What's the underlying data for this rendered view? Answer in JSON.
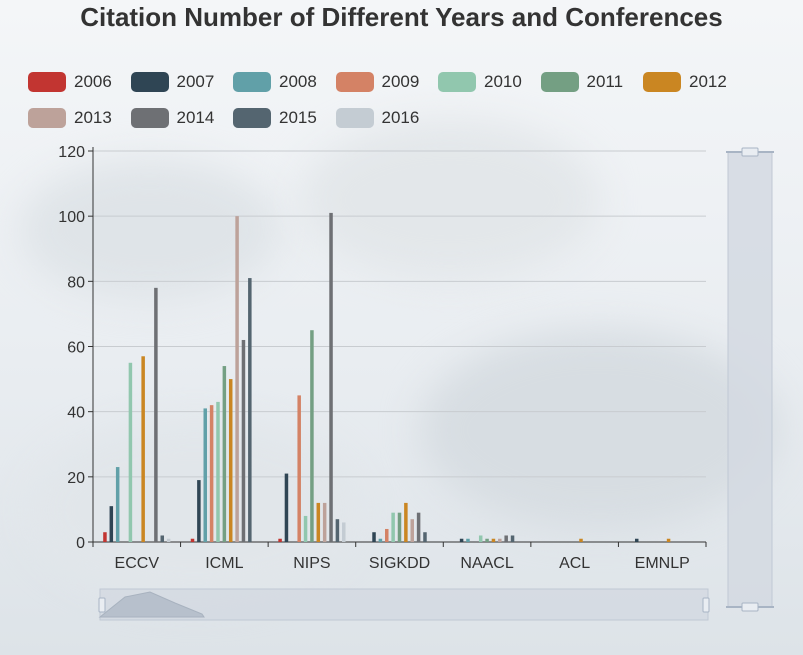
{
  "chart_data": {
    "type": "bar",
    "title": "Citation Number of Different Years and Conferences",
    "xlabel": "",
    "ylabel": "",
    "ylim": [
      0,
      120
    ],
    "yticks": [
      0,
      20,
      40,
      60,
      80,
      100,
      120
    ],
    "grid": true,
    "legend_position": "top",
    "categories": [
      "ECCV",
      "ICML",
      "NIPS",
      "SIGKDD",
      "NAACL",
      "ACL",
      "EMNLP"
    ],
    "series": [
      {
        "name": "2006",
        "color": "#c23531",
        "values": [
          3,
          1,
          1,
          0,
          0,
          0,
          0
        ]
      },
      {
        "name": "2007",
        "color": "#2f4554",
        "values": [
          11,
          19,
          21,
          3,
          1,
          0,
          1
        ]
      },
      {
        "name": "2008",
        "color": "#61a0a8",
        "values": [
          23,
          41,
          0,
          1,
          1,
          0,
          0
        ]
      },
      {
        "name": "2009",
        "color": "#d48265",
        "values": [
          0,
          42,
          45,
          4,
          0,
          0,
          0
        ]
      },
      {
        "name": "2010",
        "color": "#91c7ae",
        "values": [
          55,
          43,
          8,
          9,
          2,
          0,
          0
        ]
      },
      {
        "name": "2011",
        "color": "#749f83",
        "values": [
          0,
          54,
          65,
          9,
          1,
          0,
          0
        ]
      },
      {
        "name": "2012",
        "color": "#ca8622",
        "values": [
          57,
          50,
          12,
          12,
          1,
          1,
          1
        ]
      },
      {
        "name": "2013",
        "color": "#bda29a",
        "values": [
          0,
          100,
          12,
          7,
          1,
          0,
          0
        ]
      },
      {
        "name": "2014",
        "color": "#6e7074",
        "values": [
          78,
          62,
          101,
          9,
          2,
          0,
          0
        ]
      },
      {
        "name": "2015",
        "color": "#546570",
        "values": [
          2,
          81,
          7,
          3,
          2,
          0,
          0
        ]
      },
      {
        "name": "2016",
        "color": "#c4ccd3",
        "values": [
          1,
          0,
          6,
          0,
          0,
          0,
          0
        ]
      }
    ]
  }
}
